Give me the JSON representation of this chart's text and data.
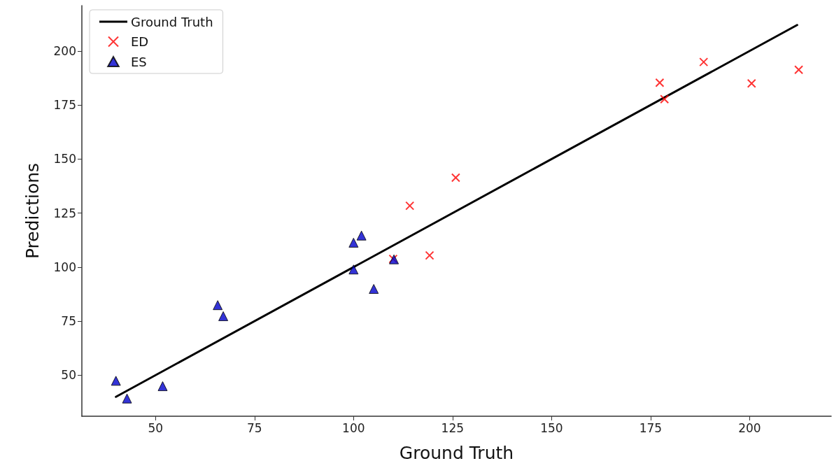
{
  "chart_data": {
    "type": "scatter",
    "xlabel": "Ground Truth",
    "ylabel": "Predictions",
    "xlim": [
      31.4,
      220.6
    ],
    "ylim": [
      31,
      221
    ],
    "xticks": [
      50,
      75,
      100,
      125,
      150,
      175,
      200
    ],
    "yticks": [
      50,
      75,
      100,
      125,
      150,
      175,
      200
    ],
    "grid": false,
    "legend": "top left",
    "series": [
      {
        "name": "Ground Truth",
        "type": "line",
        "color": "#000000",
        "marker": "none",
        "line_style": "solid",
        "x": [
          40,
          212
        ],
        "values": [
          40,
          212
        ]
      },
      {
        "name": "ED",
        "color": "#ff0000",
        "marker": "cross",
        "x": [
          110,
          114.2,
          119.2,
          125.8,
          177.3,
          178.5,
          188.4,
          200.5,
          212.4
        ],
        "values": [
          103.8,
          128.4,
          105.4,
          141.4,
          185.3,
          177.7,
          194.9,
          185.0,
          191.3
        ]
      },
      {
        "name": "ES",
        "color": "#0000cc",
        "marker": "triangle",
        "x": [
          40.0,
          42.8,
          51.8,
          65.7,
          67.1,
          100,
          102,
          100,
          105.1,
          110.2
        ],
        "values": [
          47.4,
          39.2,
          44.9,
          82.4,
          77.3,
          111.3,
          114.6,
          98.9,
          89.9,
          103.6
        ]
      }
    ]
  }
}
